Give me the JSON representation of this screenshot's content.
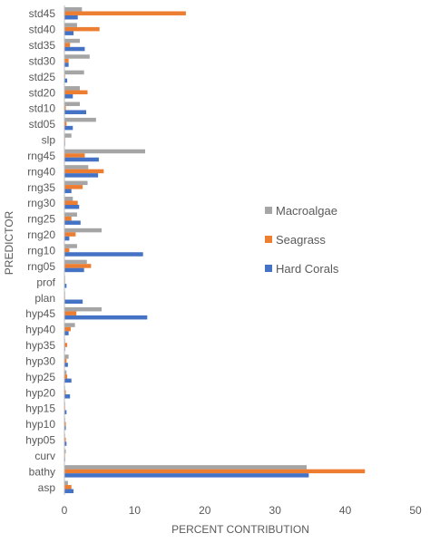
{
  "chart_data": {
    "type": "bar",
    "orientation": "horizontal",
    "title": "",
    "xlabel": "PERCENT CONTRIBUTION",
    "ylabel": "PREDICTOR",
    "xlim": [
      0,
      50
    ],
    "xticks": [
      "0",
      "10",
      "20",
      "30",
      "40",
      "50"
    ],
    "grid": false,
    "legend_position": "right",
    "categories": [
      "std45",
      "std40",
      "std35",
      "std30",
      "std25",
      "std20",
      "std10",
      "std05",
      "slp",
      "rng45",
      "rng40",
      "rng35",
      "rng30",
      "rng25",
      "rng20",
      "rng10",
      "rng05",
      "prof",
      "plan",
      "hyp45",
      "hyp40",
      "hyp35",
      "hyp30",
      "hyp25",
      "hyp20",
      "hyp15",
      "hyp10",
      "hyp05",
      "curv",
      "bathy",
      "asp"
    ],
    "series": [
      {
        "name": "Macroalgae",
        "color": "#a5a5a5",
        "values": [
          2.5,
          1.8,
          2.2,
          3.6,
          2.8,
          2.2,
          2.2,
          4.5,
          1.0,
          11.5,
          3.4,
          3.3,
          1.2,
          1.8,
          5.3,
          1.8,
          3.2,
          0.1,
          0.1,
          5.3,
          1.5,
          0.1,
          0.6,
          0.3,
          0.1,
          0.1,
          0.1,
          0.1,
          0.2,
          34.5,
          0.5
        ]
      },
      {
        "name": "Seagrass",
        "color": "#ed7d31",
        "values": [
          17.3,
          5.0,
          0.8,
          0.6,
          0.1,
          3.3,
          0.2,
          0.3,
          0.1,
          2.9,
          5.6,
          2.6,
          1.9,
          1.0,
          1.6,
          0.7,
          3.8,
          0.1,
          0.1,
          1.7,
          0.9,
          0.4,
          0.3,
          0.4,
          0.2,
          0.1,
          0.2,
          0.2,
          0.1,
          42.8,
          1.0
        ]
      },
      {
        "name": "Hard Corals",
        "color": "#4472c4",
        "values": [
          1.9,
          1.3,
          2.9,
          0.6,
          0.4,
          1.2,
          3.1,
          1.2,
          0.1,
          4.9,
          4.8,
          1.0,
          2.1,
          2.3,
          0.7,
          11.2,
          2.8,
          0.3,
          2.6,
          11.8,
          0.6,
          0.1,
          0.5,
          1.0,
          0.8,
          0.3,
          0.2,
          0.3,
          0.1,
          34.8,
          1.3
        ]
      }
    ]
  }
}
